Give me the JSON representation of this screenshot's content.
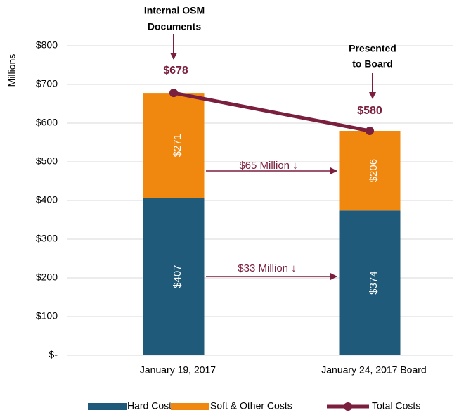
{
  "chart_data": {
    "type": "stacked_bar_line",
    "y_axis_label": "Millions",
    "categories": [
      "January 19, 2017",
      "January 24, 2017 Board"
    ],
    "series": [
      {
        "name": "Hard Costs",
        "color": "#1f5a7a",
        "values": [
          407,
          374
        ],
        "value_labels": [
          "$407",
          "$374"
        ]
      },
      {
        "name": "Soft & Other Costs",
        "color": "#f0870e",
        "values": [
          271,
          206
        ],
        "value_labels": [
          "$271",
          "$206"
        ]
      },
      {
        "name": "Total Costs",
        "type": "line",
        "color": "#7b1f3e",
        "values": [
          678,
          580
        ],
        "value_labels": [
          "$678",
          "$580"
        ]
      }
    ],
    "ylim": [
      0,
      800
    ],
    "yticks": [
      {
        "value": 0,
        "label": "$-"
      },
      {
        "value": 100,
        "label": "$100"
      },
      {
        "value": 200,
        "label": "$200"
      },
      {
        "value": 300,
        "label": "$300"
      },
      {
        "value": 400,
        "label": "$400"
      },
      {
        "value": 500,
        "label": "$500"
      },
      {
        "value": 600,
        "label": "$600"
      },
      {
        "value": 700,
        "label": "$700"
      },
      {
        "value": 800,
        "label": "$800"
      }
    ],
    "grid": true,
    "legend": "bottom",
    "annotations": [
      {
        "lines": [
          "Internal OSM",
          "Documents"
        ]
      },
      {
        "lines": [
          "Presented",
          "to Board"
        ]
      },
      {
        "text": "$65 Million ↓"
      },
      {
        "text": "$33 Million ↓"
      }
    ]
  }
}
